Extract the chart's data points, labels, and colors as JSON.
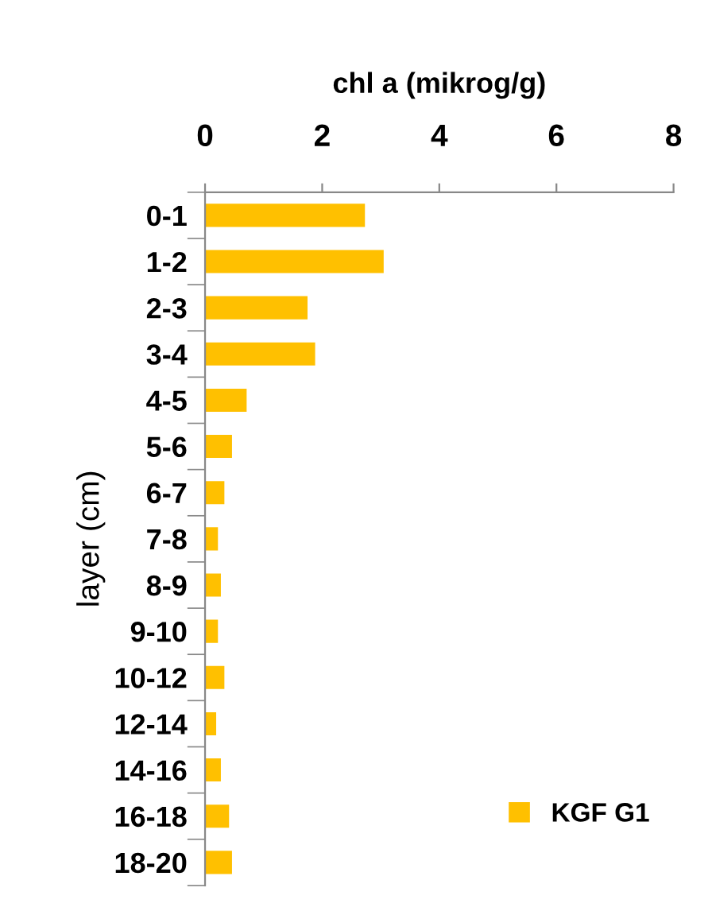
{
  "chart_data": {
    "type": "bar",
    "orientation": "horizontal",
    "xlabel": "chl a (mikrog/g)",
    "ylabel": "layer (cm)",
    "categories": [
      "0-1",
      "1-2",
      "2-3",
      "3-4",
      "4-5",
      "5-6",
      "6-7",
      "7-8",
      "8-9",
      "9-10",
      "10-12",
      "12-14",
      "14-16",
      "16-18",
      "18-20"
    ],
    "series": [
      {
        "name": "KGF G1",
        "color": "#ffc000",
        "values": [
          2.73,
          3.05,
          1.75,
          1.88,
          0.71,
          0.46,
          0.33,
          0.22,
          0.27,
          0.22,
          0.33,
          0.19,
          0.27,
          0.41,
          0.46
        ]
      }
    ],
    "xlim": [
      0,
      8
    ],
    "xticks": [
      0,
      2,
      4,
      6,
      8
    ],
    "legend": "bottom right",
    "grid": false
  }
}
